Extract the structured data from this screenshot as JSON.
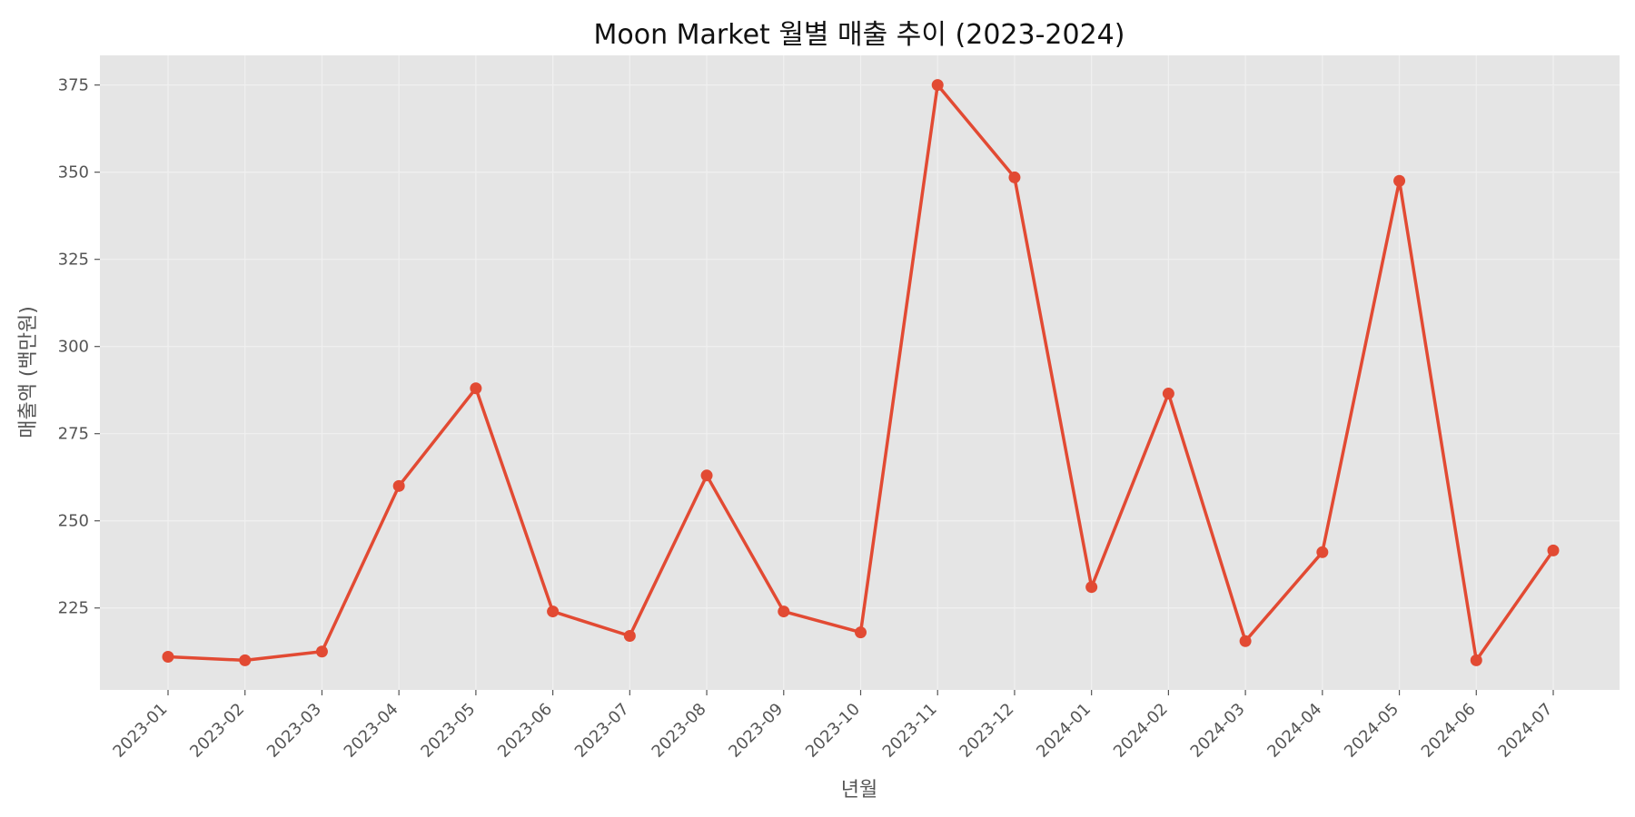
{
  "chart_data": {
    "type": "line",
    "title": "Moon Market 월별 매출 추이 (2023-2024)",
    "xlabel": "년월",
    "ylabel": "매출액 (백만원)",
    "categories": [
      "2023-01",
      "2023-02",
      "2023-03",
      "2023-04",
      "2023-05",
      "2023-06",
      "2023-07",
      "2023-08",
      "2023-09",
      "2023-10",
      "2023-11",
      "2023-12",
      "2024-01",
      "2024-02",
      "2024-03",
      "2024-04",
      "2024-05",
      "2024-06",
      "2024-07"
    ],
    "series": [
      {
        "values": [
          211,
          210,
          212.5,
          260,
          288,
          224,
          217,
          263,
          224,
          218,
          375,
          348.5,
          231,
          286.5,
          215.5,
          241,
          347.5,
          210,
          241.5
        ]
      }
    ],
    "yticks": [
      225,
      250,
      275,
      300,
      325,
      350,
      375
    ],
    "ylim": [
      201.5,
      383.5
    ],
    "grid": true,
    "colors": {
      "line": "#E24A33",
      "plot_bg": "#E5E5E5",
      "grid": "#F0F0F0"
    }
  }
}
